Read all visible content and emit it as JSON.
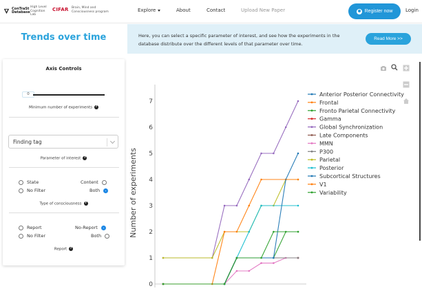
{
  "nav": {
    "logo_name": "ConTraSt Database",
    "logo_sub": "High Level Cognition Lab",
    "cifar": "CIFAR",
    "cifar_sub": "Brain, Mind and Consciousness program",
    "explore": "Explore",
    "about": "About",
    "contact": "Contact",
    "upload": "Upload New Paper",
    "register": "Register now",
    "login": "Login"
  },
  "banner": {
    "title": "Trends over time",
    "text": "Here, you can select a specific parameter of interest, and see how the experiments in the database distribute over the different levels of that parameter over time.",
    "read_more": "Read More >>"
  },
  "controls": {
    "title": "Axis Controls",
    "slider_value": "0",
    "slider_caption": "Minimum number of experiments",
    "select_value": "Finding tag",
    "select_caption": "Parameter of interest",
    "consciousness": {
      "state": "State",
      "content": "Content",
      "no_filter": "No Filter",
      "both": "Both",
      "caption": "Type of consciousness"
    },
    "report": {
      "report": "Report",
      "no_report": "No-Report",
      "no_filter": "No Filter",
      "both": "Both",
      "caption": "Report"
    }
  },
  "chart_data": {
    "type": "line",
    "ylabel": "Number of experiments",
    "xlabel": "",
    "y_ticks": [
      "0",
      "1",
      "2",
      "3",
      "4",
      "5",
      "6",
      "7"
    ],
    "ylim": [
      0,
      7.5
    ],
    "x": [
      0,
      1,
      2,
      3,
      4,
      5,
      6,
      7,
      8,
      9,
      10,
      11
    ],
    "legend_position": "right",
    "series": [
      {
        "name": "Anterior Posterior Connectivity",
        "color": "#1f77b4",
        "values": [
          0,
          0,
          0,
          0,
          0,
          0,
          1,
          1,
          1,
          1,
          1,
          1
        ]
      },
      {
        "name": "Frontal",
        "color": "#ff7f0e",
        "values": [
          0,
          0,
          0,
          0,
          0,
          0,
          1,
          1,
          1,
          1,
          1,
          1
        ]
      },
      {
        "name": "Fronto Parietal Connectivity",
        "color": "#2ca02c",
        "values": [
          0,
          0,
          0,
          0,
          0,
          0,
          1,
          1,
          1,
          1,
          2,
          2
        ]
      },
      {
        "name": "Gamma",
        "color": "#d62728",
        "values": [
          0,
          0,
          0,
          0,
          0,
          0,
          1,
          1,
          1,
          1,
          1,
          1
        ]
      },
      {
        "name": "Global Synchronization",
        "color": "#9467bd",
        "values": [
          1,
          1,
          1,
          1,
          1,
          3,
          3,
          4,
          5,
          5,
          6,
          7
        ]
      },
      {
        "name": "Late Components",
        "color": "#8c564b",
        "values": [
          0,
          0,
          0,
          0,
          0,
          0,
          1,
          1,
          1,
          1,
          1,
          1
        ]
      },
      {
        "name": "MMN",
        "color": "#e377c2",
        "values": [
          0,
          0,
          0,
          0,
          0,
          0,
          0.5,
          0.5,
          0.8,
          0.8,
          1,
          1
        ]
      },
      {
        "name": "P300",
        "color": "#7f7f7f",
        "values": [
          0,
          0,
          0,
          0,
          0,
          0,
          1,
          1,
          1,
          1,
          1,
          1
        ]
      },
      {
        "name": "Parietal",
        "color": "#bcbd22",
        "values": [
          1,
          1,
          1,
          1,
          1,
          2,
          2,
          2,
          3,
          3,
          4,
          4
        ]
      },
      {
        "name": "Posterior",
        "color": "#17becf",
        "values": [
          0,
          0,
          0,
          0,
          0,
          0,
          1,
          2,
          3,
          3,
          3,
          3
        ]
      },
      {
        "name": "Subcortical Structures",
        "color": "#1f77b4",
        "values": [
          0,
          0,
          0,
          0,
          0,
          0,
          1,
          1,
          1,
          1,
          4,
          5
        ]
      },
      {
        "name": "V1",
        "color": "#ff7f0e",
        "values": [
          0,
          0,
          0,
          0,
          0,
          2,
          2,
          3,
          4,
          4,
          4,
          4
        ]
      },
      {
        "name": "Variability",
        "color": "#2ca02c",
        "values": [
          0,
          0,
          0,
          0,
          0,
          0,
          1,
          1,
          1,
          2,
          2,
          2
        ]
      }
    ]
  }
}
